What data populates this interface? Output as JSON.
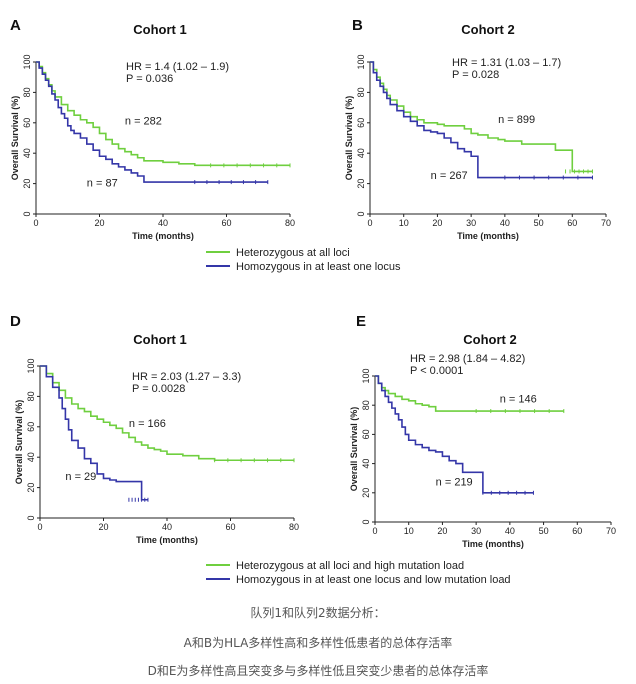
{
  "colors": {
    "green": "#6fcf3f",
    "blue": "#3436a8",
    "axis": "#222222"
  },
  "legends": [
    {
      "items": [
        {
          "label": "Heterozygous at all loci",
          "color": "#6fcf3f"
        },
        {
          "label": "Homozygous in at least one locus",
          "color": "#3436a8"
        }
      ]
    },
    {
      "items": [
        {
          "label": "Heterozygous at all loci and high mutation load",
          "color": "#6fcf3f"
        },
        {
          "label": "Homozygous in at least one locus and low mutation load",
          "color": "#3436a8"
        }
      ]
    }
  ],
  "captions": [
    "队列1和队列2数据分析：",
    "A和B为HLA多样性高和多样性低患者的总体存活率",
    "D和E为多样性高且突变多与多样性低且突变少患者的总体存活率"
  ],
  "chart_data": [
    {
      "letter": "A",
      "title": "Cohort 1",
      "type": "line",
      "xlabel": "Time (months)",
      "ylabel": "Overall Survival (%)",
      "xlim": [
        0,
        80
      ],
      "ylim": [
        0,
        100
      ],
      "xticks": [
        "0",
        "20",
        "40",
        "60",
        "80"
      ],
      "yticks": [
        "0",
        "20",
        "40",
        "60",
        "80",
        "100"
      ],
      "annotation": [
        "HR = 1.4 (1.02 – 1.9)",
        "P = 0.036"
      ],
      "series": [
        {
          "name": "Heterozygous at all loci",
          "color": "green",
          "n_label": "n = 282",
          "n_at": [
            28,
            59
          ],
          "x": [
            0,
            1,
            2,
            3,
            4,
            5,
            6,
            8,
            10,
            12,
            14,
            16,
            18,
            20,
            22,
            24,
            26,
            28,
            30,
            32,
            34,
            36,
            40,
            45,
            50,
            55,
            60,
            70,
            80
          ],
          "y": [
            100,
            97,
            93,
            89,
            85,
            81,
            77,
            72,
            68,
            65,
            62,
            60,
            57,
            53,
            49,
            46,
            43,
            41,
            39,
            37,
            35,
            35,
            34,
            33,
            32,
            32,
            32,
            32,
            32
          ]
        },
        {
          "name": "Homozygous in at least one locus",
          "color": "blue",
          "n_label": "n = 87",
          "n_at": [
            16,
            18
          ],
          "x": [
            0,
            1,
            2,
            3,
            4,
            5,
            6,
            7,
            8,
            9,
            10,
            11,
            12,
            14,
            16,
            18,
            20,
            22,
            24,
            26,
            28,
            30,
            32,
            34,
            40,
            50,
            60,
            65,
            73
          ],
          "y": [
            100,
            96,
            92,
            88,
            84,
            79,
            75,
            70,
            66,
            63,
            58,
            55,
            53,
            50,
            46,
            42,
            38,
            36,
            33,
            31,
            29,
            27,
            25,
            21,
            21,
            21,
            21,
            21,
            21
          ]
        }
      ]
    },
    {
      "letter": "B",
      "title": "Cohort 2",
      "type": "line",
      "xlabel": "Time (months)",
      "ylabel": "Overall Survival (%)",
      "xlim": [
        0,
        70
      ],
      "ylim": [
        0,
        100
      ],
      "xticks": [
        "0",
        "10",
        "20",
        "30",
        "40",
        "50",
        "60",
        "70"
      ],
      "yticks": [
        "0",
        "20",
        "40",
        "60",
        "80",
        "100"
      ],
      "annotation": [
        "HR = 1.31 (1.03 – 1.7)",
        "P = 0.028"
      ],
      "series": [
        {
          "name": "Heterozygous at all loci",
          "color": "green",
          "n_label": "n = 899",
          "n_at": [
            38,
            60
          ],
          "x": [
            0,
            1,
            2,
            3,
            4,
            5,
            6,
            8,
            10,
            12,
            14,
            16,
            18,
            20,
            22,
            25,
            28,
            30,
            32,
            35,
            38,
            40,
            45,
            50,
            55,
            58,
            60,
            65,
            66
          ],
          "y": [
            100,
            95,
            90,
            86,
            82,
            78,
            75,
            71,
            67,
            64,
            62,
            60,
            60,
            59,
            58,
            58,
            56,
            53,
            52,
            50,
            49,
            48,
            46,
            46,
            42,
            42,
            28,
            28,
            28
          ]
        },
        {
          "name": "Homozygous in at least one locus",
          "color": "blue",
          "n_label": "n = 267",
          "n_at": [
            18,
            23
          ],
          "x": [
            0,
            1,
            2,
            3,
            4,
            5,
            6,
            8,
            10,
            12,
            14,
            16,
            18,
            20,
            22,
            24,
            26,
            28,
            30,
            32,
            34,
            40,
            50,
            60,
            66
          ],
          "y": [
            100,
            93,
            88,
            84,
            80,
            76,
            72,
            68,
            64,
            61,
            58,
            55,
            54,
            53,
            50,
            47,
            43,
            41,
            38,
            24,
            24,
            24,
            24,
            24,
            24
          ]
        }
      ]
    },
    {
      "letter": "D",
      "title": "Cohort 1",
      "type": "line",
      "xlabel": "Time (months)",
      "ylabel": "Overall Survival (%)",
      "xlim": [
        0,
        80
      ],
      "ylim": [
        0,
        100
      ],
      "xticks": [
        "0",
        "20",
        "40",
        "60",
        "80"
      ],
      "yticks": [
        "0",
        "20",
        "40",
        "60",
        "80",
        "100"
      ],
      "annotation": [
        "HR = 2.03 (1.27 – 3.3)",
        "P = 0.0028"
      ],
      "series": [
        {
          "name": "Heterozygous at all loci and high mutation load",
          "color": "green",
          "n_label": "n = 166",
          "n_at": [
            28,
            60
          ],
          "x": [
            0,
            2,
            4,
            6,
            8,
            10,
            12,
            14,
            16,
            18,
            20,
            22,
            24,
            26,
            28,
            30,
            32,
            34,
            36,
            38,
            40,
            45,
            50,
            55,
            60,
            70,
            80
          ],
          "y": [
            100,
            95,
            89,
            84,
            79,
            75,
            72,
            70,
            67,
            65,
            63,
            61,
            59,
            56,
            53,
            50,
            48,
            46,
            45,
            44,
            42,
            41,
            39,
            38,
            38,
            38,
            38
          ]
        },
        {
          "name": "Homozygous in at least one locus and low mutation load",
          "color": "blue",
          "n_label": "n = 29",
          "n_at": [
            8,
            25
          ],
          "x": [
            0,
            2,
            4,
            6,
            7,
            8,
            9,
            10,
            12,
            14,
            16,
            18,
            20,
            22,
            24,
            26,
            28,
            30,
            32,
            34
          ],
          "y": [
            100,
            93,
            86,
            79,
            72,
            65,
            58,
            51,
            46,
            39,
            36,
            29,
            26,
            25,
            24,
            24,
            24,
            24,
            12,
            12
          ]
        }
      ]
    },
    {
      "letter": "E",
      "title": "Cohort 2",
      "type": "line",
      "xlabel": "Time (months)",
      "ylabel": "Overall Survival (%)",
      "xlim": [
        0,
        70
      ],
      "ylim": [
        0,
        100
      ],
      "xticks": [
        "0",
        "10",
        "20",
        "30",
        "40",
        "50",
        "60",
        "70"
      ],
      "yticks": [
        "0",
        "20",
        "40",
        "60",
        "80",
        "100"
      ],
      "annotation": [
        "HR = 2.98 (1.84 – 4.82)",
        "P < 0.0001"
      ],
      "series": [
        {
          "name": "Heterozygous at all loci and high mutation load",
          "color": "green",
          "n_label": "n = 146",
          "n_at": [
            37,
            82
          ],
          "x": [
            0,
            1,
            2,
            3,
            4,
            6,
            8,
            10,
            12,
            14,
            16,
            18,
            20,
            25,
            30,
            40,
            50,
            56
          ],
          "y": [
            100,
            95,
            92,
            90,
            88,
            86,
            84,
            83,
            81,
            80,
            79,
            76,
            76,
            76,
            76,
            76,
            76,
            76
          ]
        },
        {
          "name": "Homozygous in at least one locus and low mutation load",
          "color": "blue",
          "n_label": "n = 219",
          "n_at": [
            18,
            25
          ],
          "x": [
            0,
            1,
            2,
            3,
            4,
            5,
            6,
            7,
            8,
            9,
            10,
            12,
            14,
            16,
            18,
            20,
            22,
            24,
            26,
            28,
            30,
            32,
            35,
            40,
            47
          ],
          "y": [
            100,
            95,
            90,
            86,
            82,
            78,
            74,
            70,
            65,
            60,
            56,
            53,
            51,
            49,
            48,
            45,
            42,
            40,
            34,
            34,
            34,
            20,
            20,
            20,
            20
          ]
        }
      ]
    }
  ]
}
